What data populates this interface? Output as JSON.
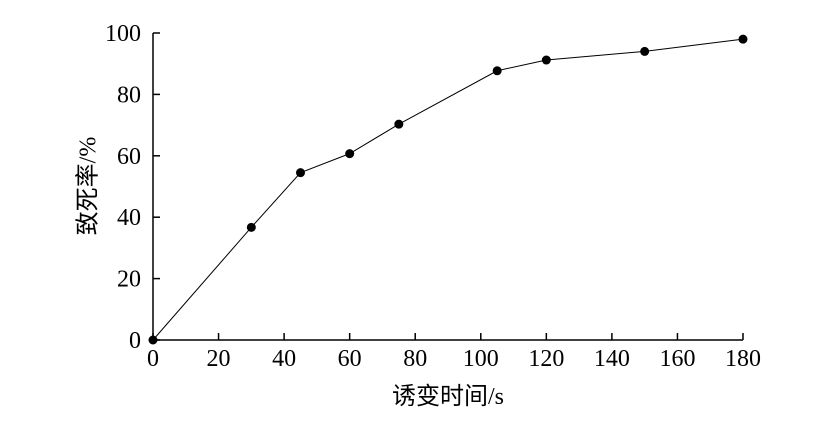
{
  "chart_data": {
    "type": "line",
    "x_label": "诱变时间/s",
    "y_label": "致死率/%",
    "x": [
      0,
      30,
      45,
      60,
      75,
      105,
      120,
      150,
      180
    ],
    "series": [
      {
        "color": "#000000",
        "values": [
          0,
          36.7,
          54.5,
          60.7,
          70.3,
          87.7,
          91.2,
          94,
          98
        ]
      }
    ],
    "xlim": [
      0,
      180
    ],
    "xticks": [
      0,
      20,
      40,
      60,
      80,
      100,
      120,
      140,
      160,
      180
    ],
    "ylim": [
      0,
      100
    ],
    "yticks": [
      0,
      20,
      40,
      60,
      80,
      100
    ]
  }
}
